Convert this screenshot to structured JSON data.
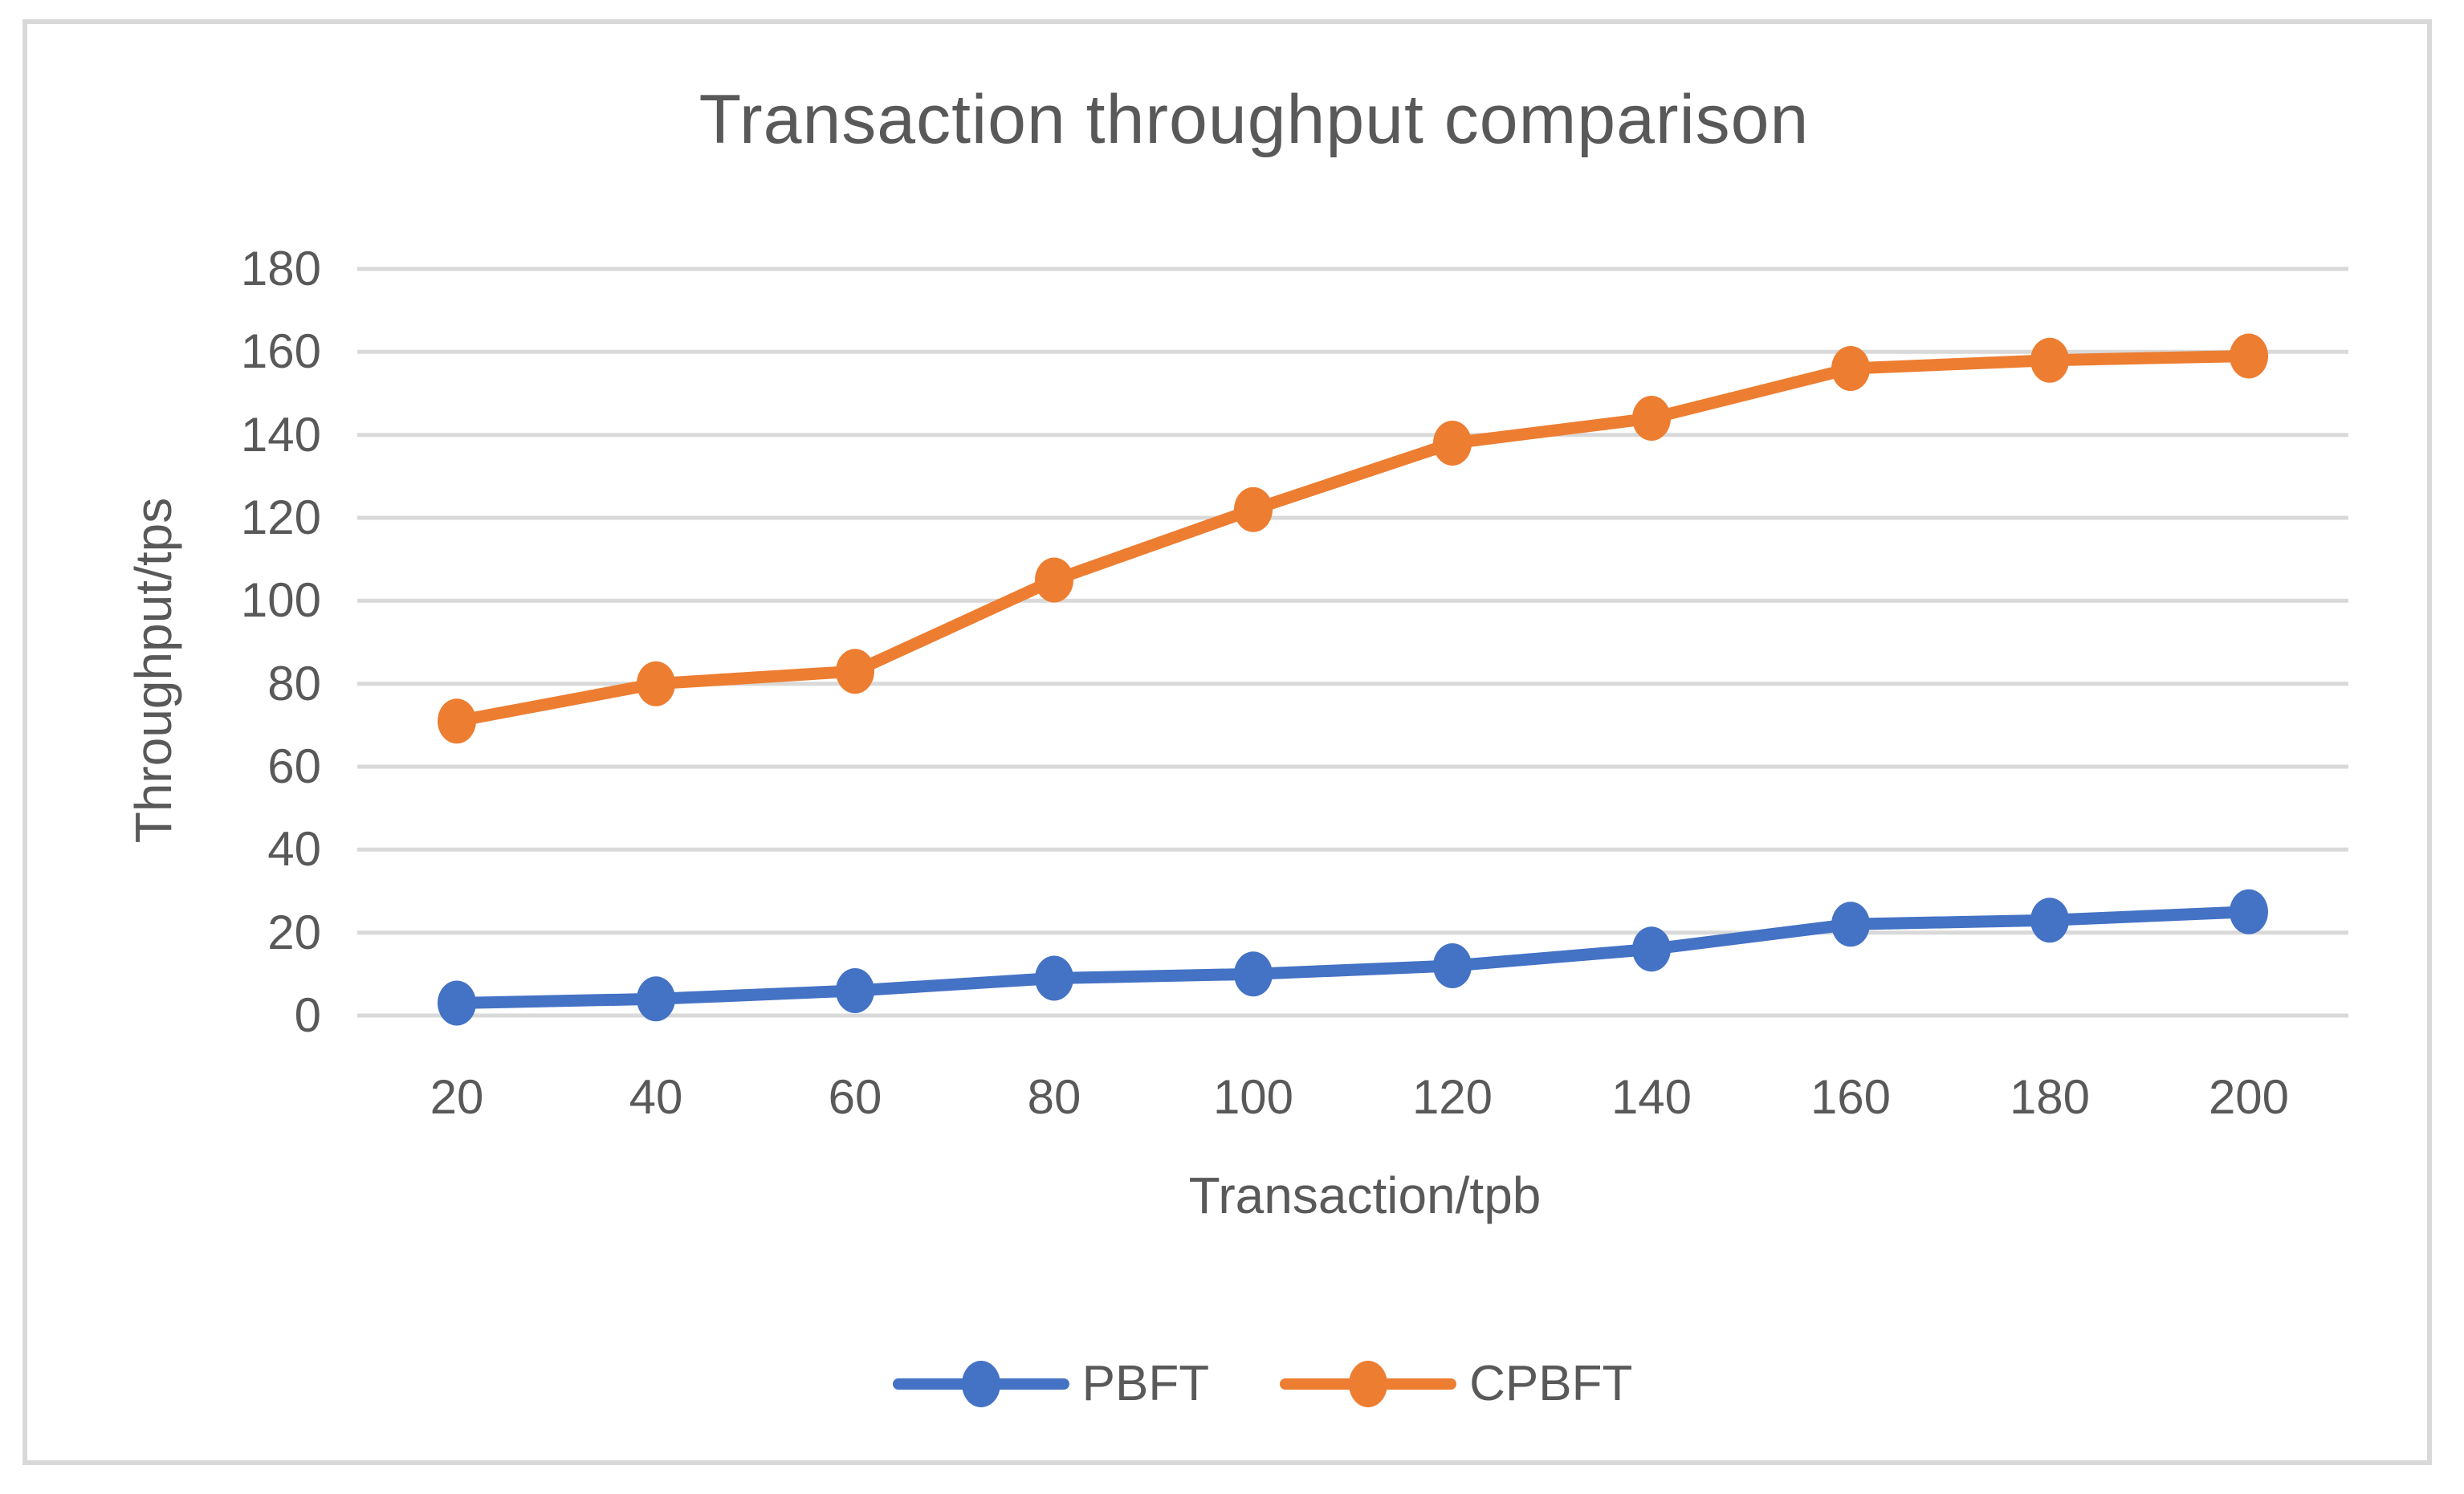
{
  "figure": {
    "title": "Transaction throughput comparison"
  },
  "chart_data": {
    "type": "line",
    "title": "Transaction throughput comparison",
    "xlabel": "Transaction/tpb",
    "ylabel": "Throughput/tps",
    "categories": [
      20,
      40,
      60,
      80,
      100,
      120,
      140,
      160,
      180,
      200
    ],
    "series": [
      {
        "name": "PBFT",
        "color": "#4472C4",
        "values": [
          3,
          4,
          6,
          9,
          10,
          12,
          16,
          22,
          23,
          25
        ]
      },
      {
        "name": "CPBFT",
        "color": "#ED7D31",
        "values": [
          71,
          80,
          83,
          105,
          122,
          138,
          144,
          156,
          158,
          159
        ]
      }
    ],
    "ylim": [
      0,
      180
    ],
    "yticks": [
      0,
      20,
      40,
      60,
      80,
      100,
      120,
      140,
      160,
      180
    ],
    "grid": "horizontal",
    "legend_position": "bottom",
    "marker": "circle"
  },
  "colors": {
    "pbft_blue": "#4472C4",
    "cpbft_orange": "#ED7D31",
    "gridline": "#D9D9D9",
    "border": "#D9D9D9",
    "text": "#595959"
  }
}
